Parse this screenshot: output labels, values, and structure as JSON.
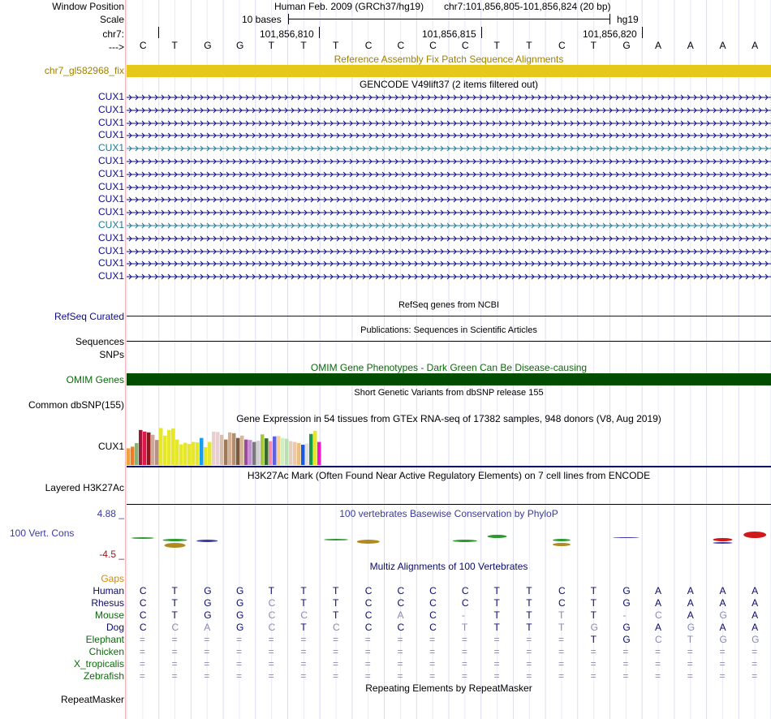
{
  "header": {
    "window_position_label": "Window Position",
    "scale_label": "Scale",
    "chrom_label": "chr7:",
    "strand_label": "--->",
    "assembly_text": "Human Feb. 2009 (GRCh37/hg19)",
    "position_text": "chr7:101,856,805-101,856,824 (20 bp)",
    "scale_text": "10 bases",
    "db_text": "hg19",
    "ruler_ticks": [
      "101,856,810",
      "101,856,815",
      "101,856,820"
    ]
  },
  "bases": [
    "C",
    "T",
    "G",
    "G",
    "T",
    "T",
    "T",
    "C",
    "C",
    "C",
    "C",
    "T",
    "T",
    "C",
    "T",
    "G",
    "A",
    "A",
    "A",
    "A"
  ],
  "fix_track": {
    "title": "Reference Assembly Fix Patch Sequence Alignments",
    "label": "chr7_gl582968_fix",
    "color": "#e6c81a"
  },
  "gencode": {
    "title": "GENCODE V49lift37 (2 items filtered out)",
    "items": [
      {
        "label": "CUX1",
        "color": "#0b0b8c"
      },
      {
        "label": "CUX1",
        "color": "#0b0b8c"
      },
      {
        "label": "CUX1",
        "color": "#0b0b8c"
      },
      {
        "label": "CUX1",
        "color": "#0b0b8c"
      },
      {
        "label": "CUX1",
        "color": "#1a7a9a"
      },
      {
        "label": "CUX1",
        "color": "#0b0b8c"
      },
      {
        "label": "CUX1",
        "color": "#0b0b8c"
      },
      {
        "label": "CUX1",
        "color": "#0b0b8c"
      },
      {
        "label": "CUX1",
        "color": "#0b0b8c"
      },
      {
        "label": "CUX1",
        "color": "#0b0b8c"
      },
      {
        "label": "CUX1",
        "color": "#1a7a9a"
      },
      {
        "label": "CUX1",
        "color": "#0b0b8c"
      },
      {
        "label": "CUX1",
        "color": "#0b0b8c"
      },
      {
        "label": "CUX1",
        "color": "#0b0b8c"
      },
      {
        "label": "CUX1",
        "color": "#0b0b8c"
      }
    ]
  },
  "refseq": {
    "title": "RefSeq genes from NCBI",
    "label": "RefSeq Curated"
  },
  "publications": {
    "title": "Publications: Sequences in Scientific Articles",
    "label": "Sequences",
    "label2": "SNPs"
  },
  "omim": {
    "title": "OMIM Gene Phenotypes - Dark Green Can Be Disease-causing",
    "label": "OMIM Genes",
    "color": "#004d00"
  },
  "dbsnp": {
    "title": "Short Genetic Variants from dbSNP release 155",
    "label": "Common dbSNP(155)"
  },
  "gtex": {
    "title": "Gene Expression in 54 tissues from GTEx RNA-seq of 17382 samples, 948 donors (V8, Aug 2019)",
    "label": "CUX1",
    "bar_colors": [
      "#f2a03c",
      "#ee7b2a",
      "#8ab077",
      "#9c1a38",
      "#e0184a",
      "#8a1a1a",
      "#d1a898",
      "#b59284",
      "#e6e62a",
      "#e6e62a",
      "#e6e62a",
      "#e6e62a",
      "#e6e62a",
      "#e6e62a",
      "#e6e62a",
      "#e6e62a",
      "#e6e62a",
      "#e6e62a",
      "#1a9eeb",
      "#e6e62a",
      "#e6e62a",
      "#e8d0d0",
      "#e8d0d0",
      "#d6c0b0",
      "#9c7a5a",
      "#d6b090",
      "#b09070",
      "#7a5a40",
      "#d8b898",
      "#9c4a9c",
      "#c090d0",
      "#7a7a7a",
      "#d0d0d0",
      "#a8c83a",
      "#3a6a2a",
      "#f090a8",
      "#6060e0",
      "#f8d090",
      "#d0f0c0",
      "#b8e0b0",
      "#e0d0c0",
      "#f0c8a8",
      "#e8c080",
      "#1a5ae0",
      "#e0e0e0",
      "#1a9a4a",
      "#e6e62a",
      "#ee1aca"
    ],
    "bar_values": [
      0.42,
      0.46,
      0.55,
      0.88,
      0.84,
      0.82,
      0.76,
      0.63,
      0.93,
      0.74,
      0.88,
      0.92,
      0.64,
      0.52,
      0.56,
      0.53,
      0.58,
      0.57,
      0.68,
      0.45,
      0.58,
      0.84,
      0.83,
      0.76,
      0.64,
      0.82,
      0.8,
      0.68,
      0.74,
      0.64,
      0.63,
      0.58,
      0.61,
      0.77,
      0.67,
      0.6,
      0.72,
      0.73,
      0.68,
      0.66,
      0.6,
      0.58,
      0.55,
      0.51,
      0.54,
      0.78,
      0.86,
      0.58
    ]
  },
  "h3k27ac": {
    "title": "H3K27Ac Mark (Often Found Near Active Regulatory Elements) on 7 cell lines from ENCODE",
    "label": "Layered H3K27Ac"
  },
  "conservation": {
    "title": "100 vertebrates Basewise Conservation by PhyloP",
    "label": "100 Vert. Cons",
    "max_label": "4.88 _",
    "min_label": "-4.5 _"
  },
  "multiz": {
    "title": "Multiz Alignments of 100 Vertebrates",
    "gaps_label": "Gaps",
    "species": [
      {
        "name": "Human",
        "color": "#0b0b6a",
        "row": [
          "C",
          "T",
          "G",
          "G",
          "T",
          "T",
          "T",
          "C",
          "C",
          "C",
          "C",
          "T",
          "T",
          "C",
          "T",
          "G",
          "A",
          "A",
          "A",
          "A"
        ]
      },
      {
        "name": "Rhesus",
        "color": "#0b0b6a",
        "row": [
          "C",
          "T",
          "G",
          "G",
          "C",
          "T",
          "T",
          "C",
          "C",
          "C",
          "C",
          "T",
          "T",
          "C",
          "T",
          "G",
          "A",
          "A",
          "A",
          "A"
        ]
      },
      {
        "name": "Mouse",
        "color": "#0a6a0a",
        "row": [
          "C",
          "T",
          "G",
          "G",
          "C",
          "C",
          "T",
          "C",
          "A",
          "C",
          "-",
          "T",
          "T",
          "T",
          "T",
          "-",
          "C",
          "A",
          "G",
          "A"
        ]
      },
      {
        "name": "Dog",
        "color": "#0b0b6a",
        "row": [
          "C",
          "C",
          "A",
          "G",
          "C",
          "T",
          "C",
          "C",
          "C",
          "C",
          "T",
          "T",
          "T",
          "T",
          "G",
          "G",
          "A",
          "G",
          "A",
          "A"
        ]
      },
      {
        "name": "Elephant",
        "color": "#0a6a0a",
        "row": [
          "=",
          "=",
          "=",
          "=",
          "=",
          "=",
          "=",
          "=",
          "=",
          "=",
          "=",
          "=",
          "=",
          "=",
          "T",
          "G",
          "C",
          "T",
          "G",
          "G"
        ]
      },
      {
        "name": "Chicken",
        "color": "#0a6a0a",
        "row": [
          "=",
          "=",
          "=",
          "=",
          "=",
          "=",
          "=",
          "=",
          "=",
          "=",
          "=",
          "=",
          "=",
          "=",
          "=",
          "=",
          "=",
          "=",
          "=",
          "="
        ]
      },
      {
        "name": "X_tropicalis",
        "color": "#0a6a0a",
        "row": [
          "=",
          "=",
          "=",
          "=",
          "=",
          "=",
          "=",
          "=",
          "=",
          "=",
          "=",
          "=",
          "=",
          "=",
          "=",
          "=",
          "=",
          "=",
          "=",
          "="
        ]
      },
      {
        "name": "Zebrafish",
        "color": "#0a6a0a",
        "row": [
          "=",
          "=",
          "=",
          "=",
          "=",
          "=",
          "=",
          "=",
          "=",
          "=",
          "=",
          "=",
          "=",
          "=",
          "=",
          "=",
          "=",
          "=",
          "=",
          "="
        ]
      }
    ]
  },
  "repeatmasker": {
    "title": "Repeating Elements by RepeatMasker",
    "label": "RepeatMasker"
  },
  "colors": {
    "track_blue": "#0b0b8c",
    "omim_green": "#0a6a0a",
    "gold": "#a08000",
    "cons_blue": "#3a3a9c",
    "cons_red": "#8c1a1a"
  }
}
